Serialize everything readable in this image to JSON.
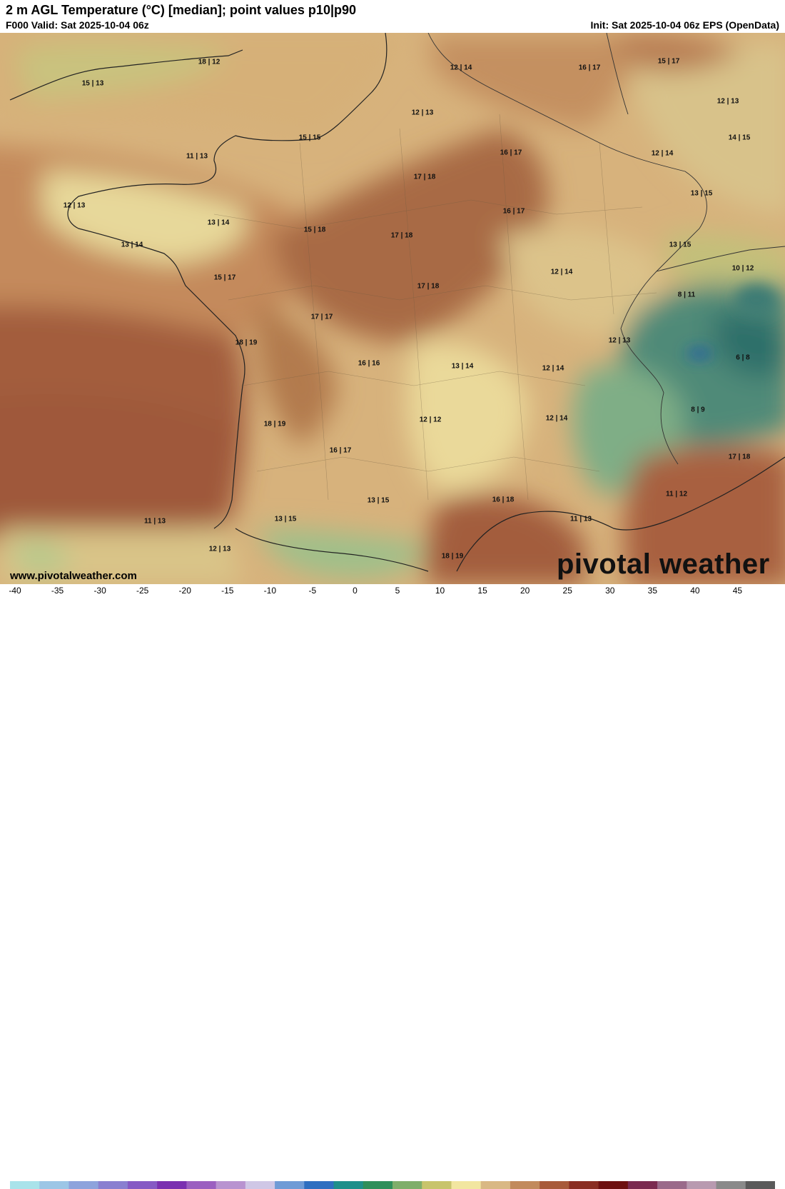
{
  "header": {
    "title": "2 m AGL Temperature (°C) [median]; point values p10|p90",
    "valid": "F000 Valid: Sat 2025-10-04 06z",
    "init": "Init: Sat 2025-10-04 06z EPS (OpenData)"
  },
  "map": {
    "region": "France",
    "points": [
      {
        "label": "18 | 12"
      },
      {
        "label": "15 | 13"
      },
      {
        "label": "12 | 14"
      },
      {
        "label": "16 | 17"
      },
      {
        "label": "15 | 17"
      },
      {
        "label": "12 | 13"
      },
      {
        "label": "12 | 13"
      },
      {
        "label": "15 | 15"
      },
      {
        "label": "14 | 15"
      },
      {
        "label": "16 | 17"
      },
      {
        "label": "11 | 13"
      },
      {
        "label": "12 | 14"
      },
      {
        "label": "17 | 18"
      },
      {
        "label": "12 | 13"
      },
      {
        "label": "13 | 15"
      },
      {
        "label": "13 | 14"
      },
      {
        "label": "15 | 18"
      },
      {
        "label": "17 | 18"
      },
      {
        "label": "16 | 17"
      },
      {
        "label": "13 | 14"
      },
      {
        "label": "13 | 15"
      },
      {
        "label": "15 | 17"
      },
      {
        "label": "12 | 14"
      },
      {
        "label": "10 | 12"
      },
      {
        "label": "17 | 18"
      },
      {
        "label": "8 | 11"
      },
      {
        "label": "17 | 17"
      },
      {
        "label": "18 | 19"
      },
      {
        "label": "12 | 13"
      },
      {
        "label": "6 | 8"
      },
      {
        "label": "16 | 16"
      },
      {
        "label": "13 | 14"
      },
      {
        "label": "12 | 14"
      },
      {
        "label": "18 | 19"
      },
      {
        "label": "12 | 12"
      },
      {
        "label": "12 | 14"
      },
      {
        "label": "8 | 9"
      },
      {
        "label": "16 | 17"
      },
      {
        "label": "17 | 18"
      },
      {
        "label": "11 | 12"
      },
      {
        "label": "13 | 15"
      },
      {
        "label": "16 | 18"
      },
      {
        "label": "11 | 13"
      },
      {
        "label": "11 | 13"
      },
      {
        "label": "13 | 15"
      },
      {
        "label": "12 | 13"
      },
      {
        "label": "18 | 19"
      }
    ]
  },
  "footer": {
    "website": "www.pivotalweather.com",
    "brand": "pivotal weather"
  },
  "colorbar": {
    "unit": "°C",
    "min": -40,
    "max": 50,
    "ticks": [
      "-40",
      "-35",
      "-30",
      "-25",
      "-20",
      "-15",
      "-10",
      "-5",
      "0",
      "5",
      "10",
      "15",
      "20",
      "25",
      "30",
      "35",
      "40",
      "45"
    ],
    "colors": [
      "#a9e3ea",
      "#9cc6e6",
      "#8ea3dc",
      "#8a7fd0",
      "#8659c4",
      "#7a2fb0",
      "#9b5fc0",
      "#b893d0",
      "#cfc7e6",
      "#6f9bd6",
      "#2f6fc0",
      "#1e8f8a",
      "#2f8f5a",
      "#7fae6a",
      "#c8c46c",
      "#f2e6a0",
      "#d9b884",
      "#c28a5c",
      "#a85a3a",
      "#8a2d22",
      "#6e1010",
      "#7a2a50",
      "#9a6a8a",
      "#b89ab0",
      "#8a8a8a",
      "#5a5a5a"
    ]
  }
}
